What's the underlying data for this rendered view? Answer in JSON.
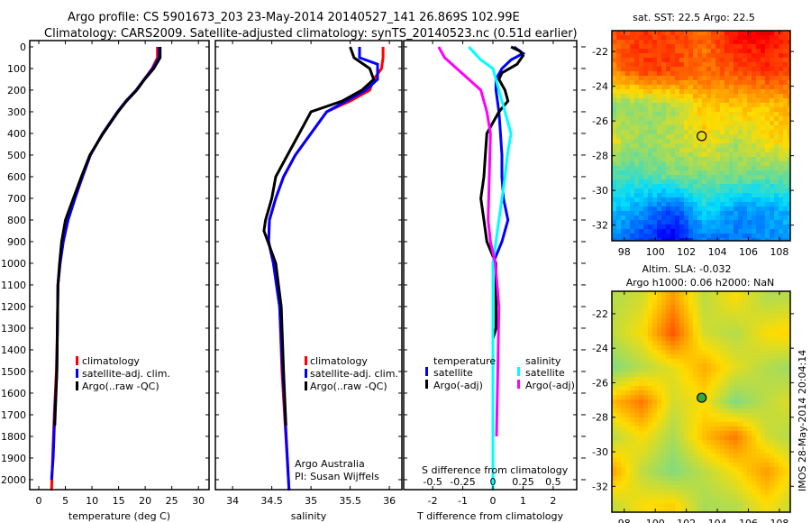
{
  "header": {
    "line1": "Argo profile: CS 5901673_203 23-May-2014 20140527_141 26.869S 102.99E",
    "line2": "Climatology: CARS2009. Satellite-adjusted climatology: synTS_20140523.nc (0.51d earlier)"
  },
  "colors": {
    "clim": "#ff0000",
    "sat": "#0000ff",
    "argo": "#000000",
    "sat_s": "#00ffff",
    "argo_s": "#ff00ff"
  },
  "legend_profiles": [
    "climatology",
    "satellite-adj. clim.",
    "Argo(..raw -QC)"
  ],
  "credit": {
    "line1": "Argo Australia",
    "line2": "PI: Susan Wijffels"
  },
  "diff_legend": {
    "temp_title": "temperature",
    "sal_title": "salinity",
    "sat": "satellite",
    "argo": "Argo(-adj)"
  },
  "map_sst_title": "sat. SST: 22.5 Argo: 22.5",
  "map_sla_title1": "Altim. SLA: -0.032",
  "map_sla_title2": "Argo h1000: 0.06 h2000: NaN",
  "footer_stamp": "IMOS 28-May-2014 20:04:14",
  "chart_data": [
    {
      "type": "line",
      "id": "temperature",
      "xlabel": "temperature (deg C)",
      "ylabel": "",
      "xlim": [
        -1.7,
        32
      ],
      "ylim": [
        2046,
        -29
      ],
      "xticks": [
        0,
        5,
        10,
        15,
        20,
        25,
        30
      ],
      "yticks": [
        0,
        100,
        200,
        300,
        400,
        500,
        600,
        700,
        800,
        900,
        1000,
        1100,
        1200,
        1300,
        1400,
        1500,
        1600,
        1700,
        1800,
        1900,
        2000
      ],
      "legend": "center-right",
      "series": [
        {
          "name": "climatology",
          "color": "clim",
          "depth": [
            0,
            50,
            100,
            150,
            200,
            250,
            300,
            400,
            500,
            600,
            700,
            800,
            900,
            1000,
            1100,
            1300,
            1500,
            1700,
            1900,
            2050
          ],
          "values": [
            22.3,
            22.3,
            21.3,
            19.8,
            18.3,
            16.4,
            14.8,
            12,
            9.7,
            8.2,
            6.8,
            5.5,
            4.6,
            4,
            3.6,
            3.5,
            3.3,
            2.9,
            2.6,
            2.4
          ]
        },
        {
          "name": "satellite-adj. clim.",
          "color": "sat",
          "depth": [
            0,
            50,
            100,
            150,
            200,
            250,
            300,
            400,
            500,
            600,
            700,
            800,
            900,
            1000,
            1100,
            1300,
            1500,
            1700,
            1900,
            2000
          ],
          "values": [
            22.6,
            22.6,
            21.4,
            19.8,
            18.3,
            16.4,
            14.8,
            12,
            9.7,
            8.2,
            6.8,
            5.5,
            4.6,
            4,
            3.6,
            3.5,
            3.4,
            3,
            2.7,
            2.4
          ]
        },
        {
          "name": "Argo(..raw -QC)",
          "color": "argo",
          "depth": [
            0,
            50,
            100,
            150,
            200,
            250,
            300,
            400,
            500,
            600,
            700,
            800,
            900,
            1000,
            1100,
            1300,
            1500,
            1750
          ],
          "values": [
            22.8,
            22.8,
            21.6,
            19.9,
            18.4,
            16.5,
            14.9,
            12.1,
            9.6,
            8,
            6.5,
            5,
            4.3,
            3.9,
            3.6,
            3.5,
            3.4,
            3
          ]
        }
      ]
    },
    {
      "type": "line",
      "id": "salinity",
      "xlabel": "salinity",
      "ylabel": "",
      "xlim": [
        33.78,
        36.16
      ],
      "ylim": [
        2046,
        -29
      ],
      "xticks": [
        34,
        34.5,
        35,
        35.5,
        36
      ],
      "legend": "center-right",
      "series": [
        {
          "name": "climatology",
          "color": "clim",
          "depth": [
            0,
            50,
            100,
            150,
            200,
            250,
            300,
            400,
            500,
            600,
            700,
            800,
            900,
            1000,
            1200,
            1500,
            2050
          ],
          "values": [
            35.92,
            35.92,
            35.9,
            35.8,
            35.75,
            35.5,
            35.2,
            35.0,
            34.8,
            34.65,
            34.55,
            34.47,
            34.46,
            34.52,
            34.6,
            34.63,
            34.72
          ]
        },
        {
          "name": "satellite-adj. clim.",
          "color": "sat",
          "depth": [
            0,
            50,
            80,
            150,
            200,
            250,
            300,
            400,
            500,
            600,
            700,
            800,
            900,
            1000,
            1200,
            1500,
            2050
          ],
          "values": [
            35.62,
            35.62,
            35.85,
            35.85,
            35.7,
            35.45,
            35.2,
            35.0,
            34.8,
            34.65,
            34.55,
            34.47,
            34.46,
            34.52,
            34.6,
            34.64,
            34.72
          ]
        },
        {
          "name": "Argo(..raw -QC)",
          "color": "argo",
          "depth": [
            0,
            50,
            100,
            150,
            200,
            250,
            300,
            400,
            500,
            600,
            700,
            800,
            850,
            900,
            1000,
            1200,
            1500,
            1750
          ],
          "values": [
            35.5,
            35.55,
            35.75,
            35.8,
            35.65,
            35.4,
            35.0,
            34.85,
            34.7,
            34.55,
            34.5,
            34.42,
            34.4,
            34.45,
            34.55,
            34.62,
            34.65,
            34.68
          ]
        }
      ]
    },
    {
      "type": "line",
      "id": "difference",
      "xlabel": "T difference from climatology",
      "xlabel_top": "S difference from climatology",
      "xlim": [
        -2.96,
        2.78
      ],
      "ylim": [
        2046,
        -29
      ],
      "xticks": [
        -2,
        -1,
        0,
        1,
        2
      ],
      "xticks_s": [
        -0.5,
        -0.25,
        0,
        0.25,
        0.5
      ],
      "legend": "lower-center",
      "series": [
        {
          "name": "temperature satellite",
          "color": "sat",
          "units": "T",
          "depth": [
            0,
            30,
            60,
            100,
            150,
            200,
            300,
            400,
            500,
            600,
            700,
            800,
            900,
            1000,
            1200,
            2050
          ],
          "values": [
            0.7,
            1.0,
            0.6,
            0.3,
            0.1,
            0.1,
            0.2,
            0.25,
            0.3,
            0.3,
            0.35,
            0.5,
            0.3,
            0.0,
            0.0,
            0.0
          ]
        },
        {
          "name": "temperature Argo(-adj)",
          "color": "argo",
          "units": "T",
          "depth": [
            0,
            20,
            40,
            80,
            120,
            150,
            200,
            250,
            300,
            400,
            500,
            600,
            700,
            800,
            900,
            1000,
            1300,
            1350
          ],
          "values": [
            0.6,
            0.9,
            1.0,
            0.8,
            0.3,
            0.2,
            0.4,
            0.5,
            0.2,
            -0.2,
            -0.25,
            -0.3,
            -0.4,
            -0.3,
            -0.2,
            0.1,
            0.1,
            0.0
          ]
        },
        {
          "name": "salinity satellite",
          "color": "sat_s",
          "units": "S",
          "depth": [
            0,
            30,
            60,
            100,
            200,
            300,
            400,
            500,
            600,
            800,
            1000,
            2050
          ],
          "values": [
            -0.2,
            -0.15,
            -0.1,
            0.0,
            0.05,
            0.1,
            0.15,
            0.12,
            0.1,
            0.05,
            0.0,
            0.0
          ]
        },
        {
          "name": "salinity Argo(-adj)",
          "color": "argo_s",
          "units": "S",
          "depth": [
            0,
            50,
            100,
            150,
            200,
            300,
            400,
            600,
            800,
            900,
            1000,
            1200,
            1500,
            1800
          ],
          "values": [
            -0.45,
            -0.4,
            -0.3,
            -0.2,
            -0.1,
            -0.05,
            -0.02,
            -0.03,
            -0.04,
            -0.02,
            0.02,
            0.05,
            0.04,
            0.03
          ]
        }
      ]
    },
    {
      "type": "heatmap",
      "id": "sst-map",
      "title": "sat. SST: 22.5 Argo: 22.5",
      "xlim": [
        97.2,
        108.7
      ],
      "ylim": [
        -20.8,
        -32.9
      ],
      "xticks": [
        98,
        100,
        102,
        104,
        106,
        108
      ],
      "yticks": [
        -22,
        -24,
        -26,
        -28,
        -30,
        -32
      ],
      "grid_lon": [
        97,
        99,
        101,
        103,
        105,
        107,
        109
      ],
      "grid_lat": [
        -21,
        -23,
        -25,
        -27,
        -29,
        -31,
        -33
      ],
      "values_normalized": [
        [
          0.78,
          0.82,
          0.8,
          0.75,
          0.86,
          0.88,
          0.8
        ],
        [
          0.72,
          0.8,
          0.8,
          0.75,
          0.78,
          0.82,
          0.78
        ],
        [
          0.5,
          0.52,
          0.55,
          0.65,
          0.65,
          0.65,
          0.68
        ],
        [
          0.6,
          0.52,
          0.55,
          0.62,
          0.55,
          0.62,
          0.62
        ],
        [
          0.45,
          0.45,
          0.5,
          0.5,
          0.5,
          0.48,
          0.48
        ],
        [
          0.35,
          0.3,
          0.2,
          0.38,
          0.3,
          0.3,
          0.35
        ],
        [
          0.28,
          0.18,
          0.1,
          0.25,
          0.25,
          0.28,
          0.3
        ]
      ],
      "marker": {
        "lon": 102.99,
        "lat": -26.869,
        "fill": "none"
      }
    },
    {
      "type": "heatmap",
      "id": "sla-map",
      "xlim": [
        97.2,
        108.7
      ],
      "ylim": [
        -20.7,
        -33.5
      ],
      "xticks": [
        98,
        100,
        102,
        104,
        106,
        108
      ],
      "yticks": [
        -22,
        -24,
        -26,
        -28,
        -30,
        -32
      ],
      "grid_lon": [
        97,
        99,
        101,
        103,
        105,
        107,
        109
      ],
      "grid_lat": [
        -21,
        -23,
        -25,
        -27,
        -29,
        -31,
        -33
      ],
      "values_normalized": [
        [
          0.55,
          0.58,
          0.7,
          0.56,
          0.62,
          0.55,
          0.56
        ],
        [
          0.56,
          0.62,
          0.78,
          0.58,
          0.55,
          0.62,
          0.64
        ],
        [
          0.5,
          0.55,
          0.6,
          0.68,
          0.6,
          0.55,
          0.52
        ],
        [
          0.66,
          0.74,
          0.58,
          0.62,
          0.5,
          0.56,
          0.6
        ],
        [
          0.55,
          0.62,
          0.54,
          0.66,
          0.74,
          0.58,
          0.54
        ],
        [
          0.7,
          0.56,
          0.5,
          0.56,
          0.62,
          0.7,
          0.6
        ],
        [
          0.56,
          0.62,
          0.64,
          0.54,
          0.55,
          0.62,
          0.56
        ]
      ],
      "marker": {
        "lon": 102.99,
        "lat": -26.869,
        "fill": "#33aa33"
      }
    }
  ]
}
